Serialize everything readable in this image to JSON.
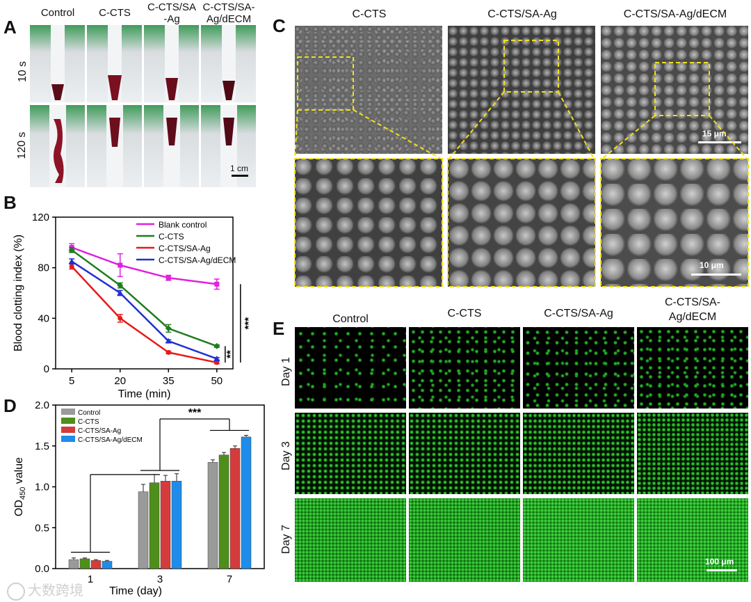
{
  "panels": {
    "A": "A",
    "B": "B",
    "C": "C",
    "D": "D",
    "E": "E"
  },
  "panelA": {
    "columns": [
      "Control",
      "C-CTS",
      "C-CTS/SA\n-Ag",
      "C-CTS/SA-\nAg/dECM"
    ],
    "rows": [
      "10 s",
      "120 s"
    ],
    "scale": "1 cm"
  },
  "panelC": {
    "columns": [
      "C-CTS",
      "C-CTS/SA-Ag",
      "C-CTS/SA-Ag/dECM"
    ],
    "scale_top": "15 μm",
    "scale_bottom": "10 μm"
  },
  "panelE": {
    "columns": [
      "Control",
      "C-CTS",
      "C-CTS/SA-Ag",
      "C-CTS/SA-\nAg/dECM"
    ],
    "rows": [
      "Day 1",
      "Day 3",
      "Day 7"
    ],
    "scale": "100 μm"
  },
  "watermark": "大数跨境",
  "chart_data": [
    {
      "type": "line",
      "panel": "B",
      "xlabel": "Time (min)",
      "ylabel": "Blood clotting index (%)",
      "x": [
        5,
        20,
        35,
        50
      ],
      "xticks": [
        "5",
        "20",
        "35",
        "50"
      ],
      "ylim": [
        0,
        120
      ],
      "yticks": [
        "0",
        "40",
        "80",
        "120"
      ],
      "series": [
        {
          "name": "Blank control",
          "color": "#e020e0",
          "marker": "square",
          "values": [
            96,
            82,
            72,
            67
          ],
          "err": [
            3,
            9,
            2,
            4
          ]
        },
        {
          "name": "C-CTS",
          "color": "#1e7d1e",
          "marker": "diamond",
          "values": [
            94,
            66,
            32,
            18
          ],
          "err": [
            2,
            2,
            3,
            1
          ]
        },
        {
          "name": "C-CTS/SA-Ag",
          "color": "#e81818",
          "marker": "circle",
          "values": [
            81,
            40,
            13,
            5
          ],
          "err": [
            2,
            3,
            1,
            1
          ]
        },
        {
          "name": "C-CTS/SA-Ag/dECM",
          "color": "#2030d0",
          "marker": "triangle",
          "values": [
            85,
            60,
            22,
            8
          ],
          "err": [
            2,
            2,
            1,
            1
          ]
        }
      ],
      "annotations": [
        "***",
        "**"
      ],
      "legend": "top-right"
    },
    {
      "type": "bar",
      "panel": "D",
      "xlabel": "Time (day)",
      "ylabel_main": "OD",
      "ylabel_sub": "450",
      "ylabel_tail": " value",
      "categories": [
        "1",
        "3",
        "7"
      ],
      "ylim": [
        0,
        2.0
      ],
      "yticks": [
        "0.0",
        "0.5",
        "1.0",
        "1.5",
        "2.0"
      ],
      "series": [
        {
          "name": "Control",
          "color": "#9a9a9a",
          "values": [
            0.11,
            0.94,
            1.3
          ],
          "err": [
            0.02,
            0.09,
            0.03
          ]
        },
        {
          "name": "C-CTS",
          "color": "#4e8e1a",
          "values": [
            0.12,
            1.05,
            1.39
          ],
          "err": [
            0.01,
            0.1,
            0.03
          ]
        },
        {
          "name": "C-CTS/SA-Ag",
          "color": "#d43c3c",
          "values": [
            0.1,
            1.07,
            1.47
          ],
          "err": [
            0.01,
            0.07,
            0.03
          ]
        },
        {
          "name": "C-CTS/SA-Ag/dECM",
          "color": "#1e8ce8",
          "values": [
            0.09,
            1.07,
            1.61
          ],
          "err": [
            0.01,
            0.09,
            0.02
          ]
        }
      ],
      "annotations": [
        "***"
      ],
      "legend": "top-left"
    }
  ]
}
